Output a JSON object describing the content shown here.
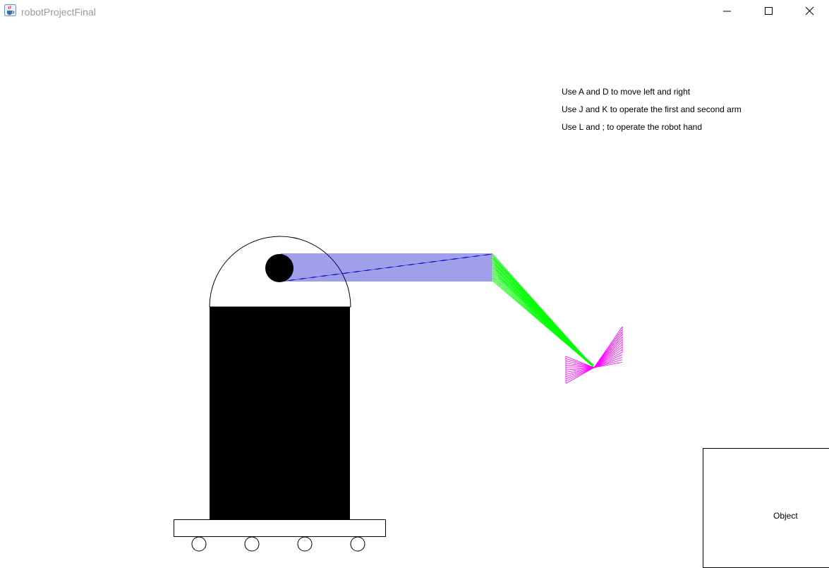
{
  "window": {
    "title": "robotProjectFinal",
    "app_icon": "java-cup-icon",
    "controls": {
      "minimize_icon": "minimize-icon",
      "maximize_icon": "maximize-icon",
      "close_icon": "close-icon"
    }
  },
  "instructions": [
    "Use A and D to move left and right",
    "Use J and K to operate the first and second arm",
    "Use L and ; to operate the robot hand"
  ],
  "object": {
    "label": "Object"
  },
  "colors": {
    "first_arm": "#0000c8",
    "second_arm": "#00ff00",
    "hand": "#ff00ff",
    "robot_body": "#000000",
    "background": "#ffffff",
    "title_text": "#9a9a9a"
  }
}
